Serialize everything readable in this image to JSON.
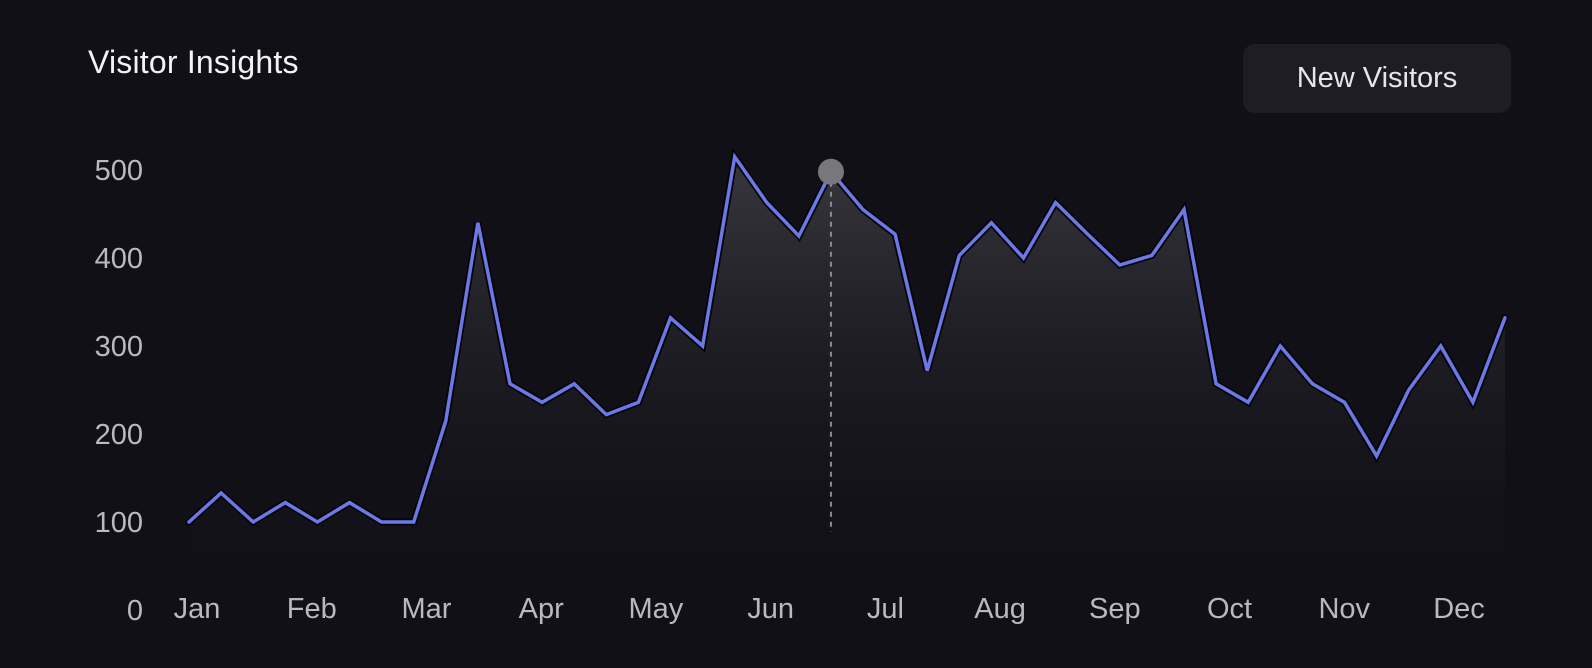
{
  "header": {
    "title": "Visitor Insights",
    "filter_label": "New Visitors"
  },
  "colors": {
    "line": "#6b78e6",
    "marker": "#77777c",
    "crosshair": "#8a8a90",
    "background": "#101016"
  },
  "chart_data": {
    "type": "area",
    "title": "Visitor Insights",
    "xlabel": "",
    "ylabel": "",
    "ylim": [
      0,
      500
    ],
    "yticks": [
      0,
      100,
      200,
      300,
      400,
      500
    ],
    "xticks": [
      "Jan",
      "Feb",
      "Mar",
      "Apr",
      "May",
      "Jun",
      "Jul",
      "Aug",
      "Sep",
      "Oct",
      "Nov",
      "Dec"
    ],
    "grid": false,
    "highlight_index": 20,
    "series": [
      {
        "name": "New Visitors",
        "values": [
          100,
          133,
          100,
          122,
          100,
          122,
          100,
          100,
          215,
          440,
          257,
          236,
          257,
          222,
          236,
          332,
          300,
          515,
          463,
          425,
          498,
          455,
          427,
          272,
          403,
          440,
          400,
          463,
          427,
          392,
          403,
          455,
          257,
          236,
          300,
          257,
          236,
          175,
          250,
          300,
          236,
          332
        ]
      }
    ]
  }
}
